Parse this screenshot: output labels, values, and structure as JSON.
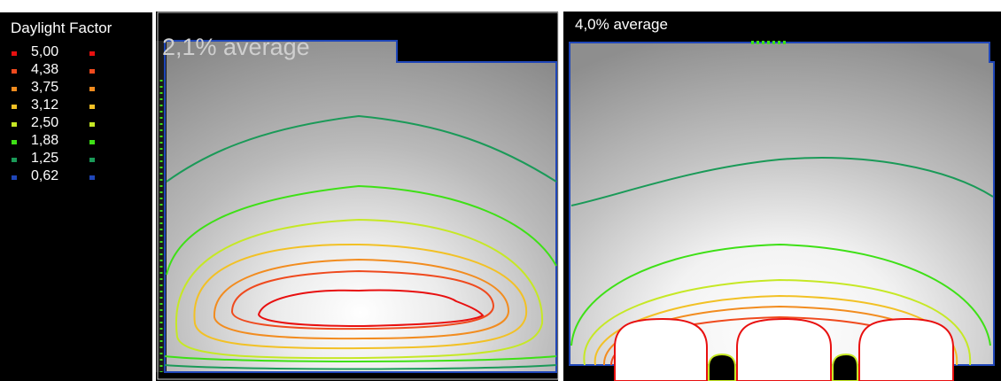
{
  "legend": {
    "title": "Daylight Factor",
    "items": [
      {
        "value": "5,00",
        "color": "#e81010"
      },
      {
        "value": "4,38",
        "color": "#ef4a1e"
      },
      {
        "value": "3,75",
        "color": "#f28c1f"
      },
      {
        "value": "3,12",
        "color": "#f2c125"
      },
      {
        "value": "2,50",
        "color": "#c6e825"
      },
      {
        "value": "1,88",
        "color": "#3ee016"
      },
      {
        "value": "1,25",
        "color": "#1a9a58"
      },
      {
        "value": "0,62",
        "color": "#1f46b8"
      }
    ]
  },
  "panels": {
    "left": {
      "caption": "2,1% average"
    },
    "right": {
      "caption": "4,0% average"
    }
  }
}
